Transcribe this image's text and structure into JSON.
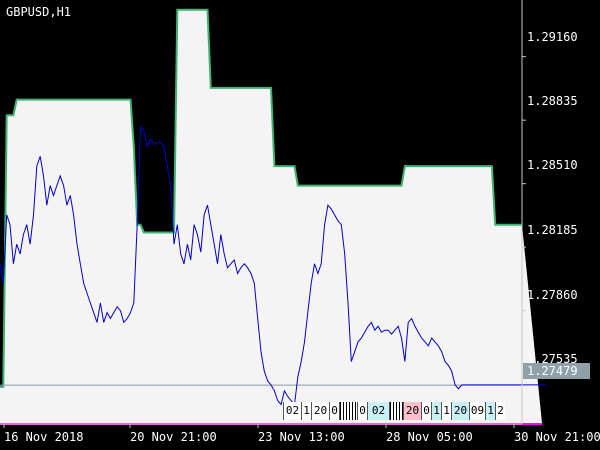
{
  "chart": {
    "symbol_label": "GBPUSD,H1",
    "current_price_label": "1.27479",
    "price_labels": [
      "1.29160",
      "1.28835",
      "1.28510",
      "1.28185",
      "1.27860",
      "1.27535"
    ],
    "time_labels": [
      "16 Nov 2018",
      "20 Nov 21:00",
      "23 Nov 13:00",
      "28 Nov 05:00",
      "30 Nov 21:00"
    ],
    "signal_labels": [
      "02",
      "1",
      "20",
      "0",
      "0",
      "02",
      "20",
      "0",
      "1",
      "1",
      "20",
      "09",
      "1",
      "2"
    ],
    "colors": {
      "background": "#000000",
      "band_fill": "#f4f4f4",
      "upper_band": "#3cb371",
      "lower_band": "#ff00ff",
      "price_line": "#0000cd",
      "current_line": "#8899a6",
      "axis": "#c8c8c8",
      "signal_white": "#ffffff",
      "signal_pink": "#ffc0cb",
      "signal_cyan": "#c8f0f5"
    }
  },
  "chart_data": {
    "type": "line",
    "title": "GBPUSD,H1",
    "xlabel": "",
    "ylabel": "",
    "ylim": [
      1.2728,
      1.2945
    ],
    "y_ticks": [
      1.2916,
      1.28835,
      1.2851,
      1.28185,
      1.2786,
      1.27535
    ],
    "x_ticks": [
      "16 Nov 2018",
      "20 Nov 21:00",
      "23 Nov 13:00",
      "28 Nov 05:00",
      "30 Nov 21:00"
    ],
    "current_price": 1.27479,
    "grid": false,
    "legend": "none",
    "series": [
      {
        "role": "upper-band",
        "color": "#3cb371",
        "values": [
          1.2747,
          1.2747,
          1.2886,
          1.2886,
          1.2886,
          1.2894,
          1.2894,
          1.2894,
          1.2894,
          1.2894,
          1.2894,
          1.2894,
          1.2894,
          1.2894,
          1.2894,
          1.2894,
          1.2894,
          1.2894,
          1.2894,
          1.2894,
          1.2894,
          1.2894,
          1.2894,
          1.2894,
          1.2894,
          1.2894,
          1.2894,
          1.2894,
          1.2894,
          1.2894,
          1.2894,
          1.2894,
          1.2894,
          1.2894,
          1.2894,
          1.2894,
          1.2894,
          1.2894,
          1.2894,
          1.2894,
          1.287,
          1.283,
          1.283,
          1.2826,
          1.2826,
          1.2826,
          1.2826,
          1.2826,
          1.2826,
          1.2826,
          1.2826,
          1.2826,
          1.2826,
          1.294,
          1.294,
          1.294,
          1.294,
          1.294,
          1.294,
          1.294,
          1.294,
          1.294,
          1.294,
          1.29,
          1.29,
          1.29,
          1.29,
          1.29,
          1.29,
          1.29,
          1.29,
          1.29,
          1.29,
          1.29,
          1.29,
          1.29,
          1.29,
          1.29,
          1.29,
          1.29,
          1.29,
          1.29,
          1.286,
          1.286,
          1.286,
          1.286,
          1.286,
          1.286,
          1.286,
          1.285,
          1.285,
          1.285,
          1.285,
          1.285,
          1.285,
          1.285,
          1.285,
          1.285,
          1.285,
          1.285,
          1.285,
          1.285,
          1.285,
          1.285,
          1.285,
          1.285,
          1.285,
          1.285,
          1.285,
          1.285,
          1.285,
          1.285,
          1.285,
          1.285,
          1.285,
          1.285,
          1.285,
          1.285,
          1.285,
          1.285,
          1.285,
          1.286,
          1.286,
          1.286,
          1.286,
          1.286,
          1.286,
          1.286,
          1.286,
          1.286,
          1.286,
          1.286,
          1.286,
          1.286,
          1.286,
          1.286,
          1.286,
          1.286,
          1.286,
          1.286,
          1.286,
          1.286,
          1.286,
          1.286,
          1.286,
          1.286,
          1.286,
          1.286,
          1.283,
          1.283,
          1.283,
          1.283,
          1.283,
          1.283,
          1.283,
          1.283,
          1.283
        ]
      },
      {
        "role": "lower-band",
        "color": "#ff00ff",
        "values": [
          1.2728,
          1.2728,
          1.2728,
          1.2728,
          1.2728,
          1.2728,
          1.2728,
          1.2728,
          1.2728,
          1.2728,
          1.2728,
          1.2728,
          1.2728,
          1.2728,
          1.2728,
          1.2728,
          1.2728,
          1.2728,
          1.2728,
          1.2728,
          1.2728,
          1.2728,
          1.2728,
          1.2728,
          1.2728,
          1.2728,
          1.2728,
          1.2728,
          1.2728,
          1.2728,
          1.2728,
          1.2728,
          1.2728,
          1.2728,
          1.2728,
          1.2728,
          1.2728,
          1.2728,
          1.2728,
          1.2728,
          1.2728,
          1.2728,
          1.2728,
          1.2728,
          1.2728,
          1.2728,
          1.2728,
          1.2728,
          1.2728,
          1.2728,
          1.2728,
          1.2728,
          1.2728,
          1.2728,
          1.2728,
          1.2728,
          1.2728,
          1.2728,
          1.2728,
          1.2728,
          1.2728,
          1.2728,
          1.2728,
          1.2728,
          1.2728,
          1.2728,
          1.2728,
          1.2728,
          1.2728,
          1.2728,
          1.2728,
          1.2728,
          1.2728,
          1.2728,
          1.2728,
          1.2728,
          1.2728,
          1.2728,
          1.2728,
          1.2728,
          1.2728,
          1.2728,
          1.2728,
          1.2728,
          1.2728,
          1.2728,
          1.2728,
          1.2728,
          1.2728,
          1.2728,
          1.2728,
          1.2728,
          1.2728,
          1.2728,
          1.2728,
          1.2728,
          1.2728,
          1.2728,
          1.2728,
          1.2728,
          1.2728,
          1.2728,
          1.2728,
          1.2728,
          1.2728,
          1.2728,
          1.2728,
          1.2728,
          1.2728,
          1.2728,
          1.2728,
          1.2728,
          1.2728,
          1.2728,
          1.2728,
          1.2728,
          1.2728,
          1.2728,
          1.2728,
          1.2728,
          1.2728,
          1.2728,
          1.2728,
          1.2728,
          1.2728,
          1.2728,
          1.2728,
          1.2728,
          1.2728,
          1.2728,
          1.2728,
          1.2728,
          1.2728,
          1.2728,
          1.2728,
          1.2728,
          1.2728,
          1.2728,
          1.2728,
          1.2728,
          1.2728,
          1.2728,
          1.2728,
          1.2728,
          1.2728,
          1.2728,
          1.2728,
          1.2728,
          1.2728,
          1.2728,
          1.2728,
          1.2728,
          1.2728,
          1.2728,
          1.2728,
          1.2728,
          1.2728,
          1.2728,
          1.2728,
          1.2728,
          1.2728,
          1.2728,
          1.2728
        ]
      },
      {
        "role": "price",
        "color": "#0000cd",
        "values": [
          1.281,
          1.28,
          1.2835,
          1.283,
          1.281,
          1.282,
          1.2815,
          1.2825,
          1.283,
          1.282,
          1.2835,
          1.286,
          1.2865,
          1.2855,
          1.284,
          1.285,
          1.2845,
          1.285,
          1.2855,
          1.285,
          1.284,
          1.2845,
          1.2835,
          1.282,
          1.281,
          1.28,
          1.2795,
          1.279,
          1.2785,
          1.278,
          1.279,
          1.278,
          1.2785,
          1.2782,
          1.2785,
          1.2788,
          1.2786,
          1.278,
          1.2782,
          1.2785,
          1.279,
          1.283,
          1.288,
          1.2878,
          1.287,
          1.2874,
          1.2871,
          1.2872,
          1.2872,
          1.287,
          1.286,
          1.285,
          1.282,
          1.283,
          1.2815,
          1.281,
          1.282,
          1.2812,
          1.283,
          1.2825,
          1.2816,
          1.2835,
          1.284,
          1.283,
          1.282,
          1.281,
          1.2825,
          1.2815,
          1.2808,
          1.281,
          1.2812,
          1.2805,
          1.2808,
          1.281,
          1.2808,
          1.2805,
          1.28,
          1.2782,
          1.2765,
          1.2755,
          1.275,
          1.2748,
          1.2745,
          1.274,
          1.2738,
          1.2745,
          1.2742,
          1.274,
          1.2738,
          1.2752,
          1.276,
          1.277,
          1.2785,
          1.28,
          1.281,
          1.2805,
          1.281,
          1.283,
          1.284,
          1.2838,
          1.2835,
          1.2832,
          1.283,
          1.2815,
          1.279,
          1.276,
          1.2765,
          1.277,
          1.2772,
          1.2775,
          1.2778,
          1.278,
          1.2776,
          1.2778,
          1.2775,
          1.2776,
          1.2776,
          1.2774,
          1.2776,
          1.2778,
          1.2772,
          1.276,
          1.278,
          1.2782,
          1.2778,
          1.2775,
          1.2772,
          1.277,
          1.2768,
          1.2772,
          1.277,
          1.2768,
          1.2765,
          1.276,
          1.2758,
          1.2755,
          1.2748,
          1.2746,
          1.2748,
          1.2748,
          1.2748,
          1.2748,
          1.2748,
          1.2748,
          1.2748,
          1.2748,
          1.2748,
          1.2748,
          1.2748,
          1.2748,
          1.2748,
          1.2748,
          1.2748,
          1.2748,
          1.2748,
          1.2748,
          1.2748,
          1.2748,
          1.2748,
          1.2748,
          1.2748,
          1.2748,
          1.2748,
          1.2748
        ]
      }
    ]
  }
}
